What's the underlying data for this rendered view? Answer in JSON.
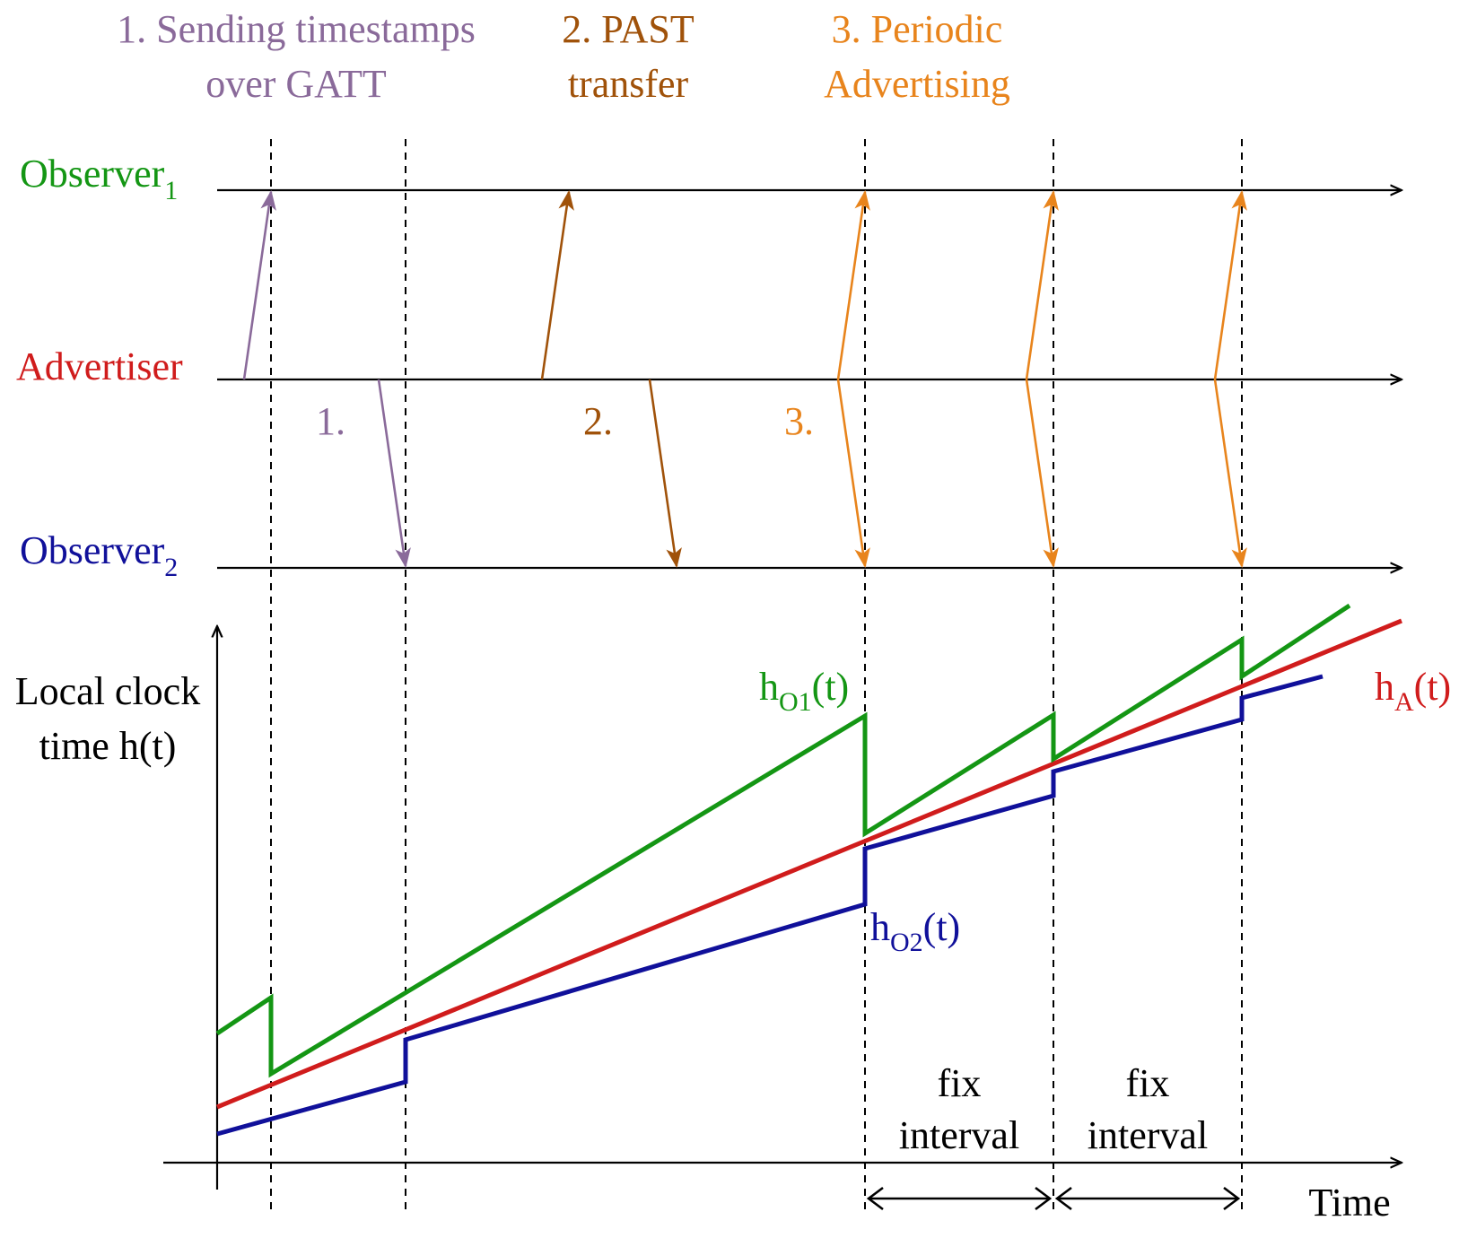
{
  "colors": {
    "purple": "#8a6a9a",
    "brown": "#a0520a",
    "orange": "#e8841c",
    "green": "#149614",
    "red": "#d01c1c",
    "blue": "#10109a",
    "black": "#000000"
  },
  "phases": [
    {
      "line1": "1. Sending timestamps",
      "line2": "over GATT",
      "marker": "1.",
      "color": "purple"
    },
    {
      "line1": "2. PAST",
      "line2": "transfer",
      "marker": "2.",
      "color": "brown"
    },
    {
      "line1": "3. Periodic",
      "line2": "Advertising",
      "marker": "3.",
      "color": "orange"
    }
  ],
  "lanes": {
    "observer1": {
      "base": "Observer",
      "sub": "1"
    },
    "advertiser": {
      "label": "Advertiser"
    },
    "observer2": {
      "base": "Observer",
      "sub": "2"
    }
  },
  "clock_axis": {
    "y_line1": "Local clock",
    "y_line2": "time h(t)",
    "x_label": "Time"
  },
  "curves": {
    "o1": {
      "base": "h",
      "sub": "O1",
      "suffix": "(t)"
    },
    "o2": {
      "base": "h",
      "sub": "O2",
      "suffix": "(t)"
    },
    "a": {
      "base": "h",
      "sub": "A",
      "suffix": "(t)"
    }
  },
  "intervals": [
    {
      "line1": "fix",
      "line2": "interval"
    },
    {
      "line1": "fix",
      "line2": "interval"
    }
  ]
}
